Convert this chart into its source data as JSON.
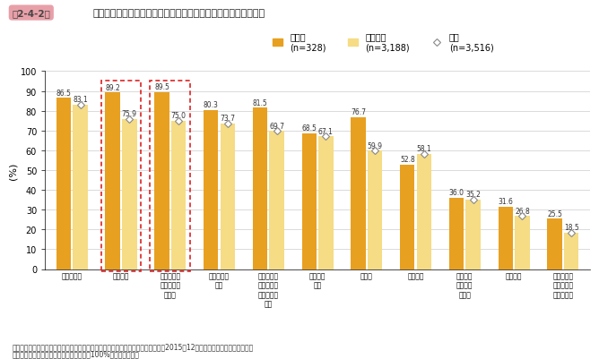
{
  "title_badge": "第2-4-2図",
  "title_text": "企業規模別に見た事業の継続が困難になると想定しているリスク",
  "ylabel": "(%)",
  "ylim": [
    0,
    100
  ],
  "yticks": [
    0,
    10,
    20,
    30,
    40,
    50,
    60,
    70,
    80,
    90,
    100
  ],
  "categories": [
    "設備の故障",
    "自然災害",
    "情報セキュ\nリティ上の\nリスク",
    "火災、爆発\n事故",
    "自社業務管\n理システム\nの不具合・\n故障",
    "取引先の\n倒産",
    "感染症",
    "製品事故",
    "日本国内\nでの物流\nの混乱",
    "環境破壊",
    "海外での戦\n乱、テロ、\n自然災害等"
  ],
  "large_company": [
    86.5,
    89.2,
    89.5,
    80.3,
    81.5,
    68.5,
    76.7,
    52.8,
    36.0,
    31.6,
    25.5
  ],
  "small_company": [
    83.1,
    75.9,
    75.0,
    73.7,
    69.7,
    67.1,
    59.9,
    58.1,
    35.2,
    26.8,
    18.5
  ],
  "color_large": "#E8A020",
  "color_small": "#F5DC85",
  "legend_large_label1": "大企業",
  "legend_large_label2": "(n=328)",
  "legend_small_label1": "中小企業",
  "legend_small_label2": "(n=3,188)",
  "legend_total_label1": "全体",
  "legend_total_label2": "(n=3,516)",
  "highlight_indices": [
    1,
    2
  ],
  "footnote1": "資料：中小企業庁委託「中小企業のリスクマネジメントへの取組に関する調査」（2015年12月、みずほ総合研究所（株））",
  "footnote2": "（注）　複数回答のため、合計は必ずしも100%にはならない。",
  "badge_color": "#E8A0A8",
  "badge_text_color": "#333333",
  "title_color": "#222222",
  "grid_color": "#cccccc",
  "label_color": "#333333",
  "diamond_edge_color": "#888888",
  "red_box_color": "#DD2222"
}
